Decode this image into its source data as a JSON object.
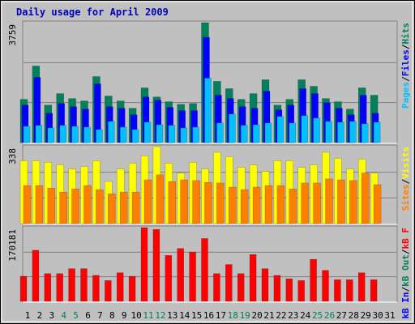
{
  "chart_data": {
    "type": "bar",
    "title": "Daily usage for April 2009",
    "categories": [
      "1",
      "2",
      "3",
      "4",
      "5",
      "6",
      "7",
      "8",
      "9",
      "10",
      "11",
      "12",
      "13",
      "14",
      "15",
      "16",
      "17",
      "18",
      "19",
      "20",
      "21",
      "22",
      "23",
      "24",
      "25",
      "26",
      "27",
      "28",
      "29",
      "30",
      "31"
    ],
    "category_colors": [
      "#000000",
      "#000000",
      "#000000",
      "#00805c",
      "#00805c",
      "#000000",
      "#000000",
      "#000000",
      "#000000",
      "#000000",
      "#00805c",
      "#00805c",
      "#000000",
      "#000000",
      "#000000",
      "#000000",
      "#000000",
      "#00805c",
      "#00805c",
      "#000000",
      "#000000",
      "#000000",
      "#000000",
      "#000000",
      "#00805c",
      "#00805c",
      "#000000",
      "#000000",
      "#000000",
      "#000000",
      "#000000"
    ],
    "legend_separator": "/",
    "panels": [
      {
        "ylim": [
          0,
          3759
        ],
        "yticks": [
          3759
        ],
        "series": [
          {
            "name": "Hits",
            "color": "#00805c",
            "values": [
              1355,
              2400,
              1175,
              1535,
              1380,
              1305,
              2070,
              1460,
              1305,
              1075,
              1715,
              1430,
              1280,
              1200,
              1225,
              3759,
              1920,
              1690,
              1355,
              1535,
              1970,
              1175,
              1355,
              1970,
              1765,
              1380,
              1280,
              1050,
              1715,
              1485,
              null
            ]
          },
          {
            "name": "Files",
            "color": "#0000ff",
            "values": [
              1175,
              2045,
              920,
              1225,
              1125,
              1050,
              1840,
              1125,
              1075,
              870,
              1430,
              1330,
              1100,
              1000,
              1000,
              3300,
              1485,
              1380,
              1125,
              1075,
              1610,
              1025,
              1175,
              1690,
              1535,
              1250,
              1075,
              870,
              1485,
              920,
              null
            ]
          },
          {
            "name": "Pages",
            "color": "#00c0ff",
            "values": [
              510,
              540,
              460,
              540,
              510,
              485,
              410,
              665,
              485,
              410,
              640,
              560,
              540,
              460,
              485,
              2020,
              615,
              895,
              540,
              560,
              615,
              820,
              615,
              845,
              770,
              665,
              640,
              665,
              590,
              640,
              null
            ]
          }
        ]
      },
      {
        "ylim": [
          0,
          338
        ],
        "yticks": [
          338
        ],
        "series": [
          {
            "name": "Visits",
            "color": "#ffff00",
            "values": [
              276,
              276,
              269,
              258,
              240,
              251,
              276,
              185,
              240,
              265,
              298,
              338,
              265,
              222,
              269,
              240,
              313,
              294,
              247,
              258,
              229,
              276,
              276,
              247,
              258,
              313,
              287,
              240,
              283,
              222,
              null
            ]
          },
          {
            "name": "Sites",
            "color": "#ff8000",
            "values": [
              167,
              167,
              156,
              138,
              152,
              167,
              149,
              131,
              138,
              138,
              192,
              214,
              185,
              192,
              189,
              181,
              178,
              160,
              149,
              160,
              167,
              167,
              152,
              178,
              178,
              196,
              192,
              189,
              222,
              171,
              null
            ]
          }
        ]
      },
      {
        "ylim": [
          0,
          170181
        ],
        "yticks": [
          170181
        ],
        "series": [
          {
            "name": "kB F",
            "color": "#ff0000",
            "values": [
              58000,
              118000,
              64000,
              64000,
              75400,
              75400,
              60000,
              48000,
              66000,
              58000,
              170181,
              166000,
              106000,
              122000,
              114000,
              145000,
              64000,
              85000,
              64000,
              108000,
              75400,
              60000,
              52000,
              48000,
              97000,
              71600,
              50000,
              50000,
              66000,
              50000,
              null
            ]
          },
          {
            "name": "kB Out",
            "color": "#00805c",
            "values": [
              0,
              0,
              0,
              0,
              0,
              0,
              0,
              0,
              0,
              0,
              0,
              0,
              0,
              0,
              0,
              0,
              0,
              0,
              0,
              0,
              0,
              0,
              0,
              0,
              0,
              0,
              0,
              0,
              0,
              0,
              null
            ]
          },
          {
            "name": "kB In",
            "color": "#0000ff",
            "values": [
              0,
              0,
              0,
              0,
              0,
              0,
              0,
              0,
              0,
              0,
              0,
              0,
              0,
              0,
              0,
              0,
              0,
              0,
              0,
              0,
              0,
              0,
              0,
              0,
              0,
              0,
              0,
              0,
              0,
              0,
              null
            ]
          }
        ]
      }
    ]
  }
}
